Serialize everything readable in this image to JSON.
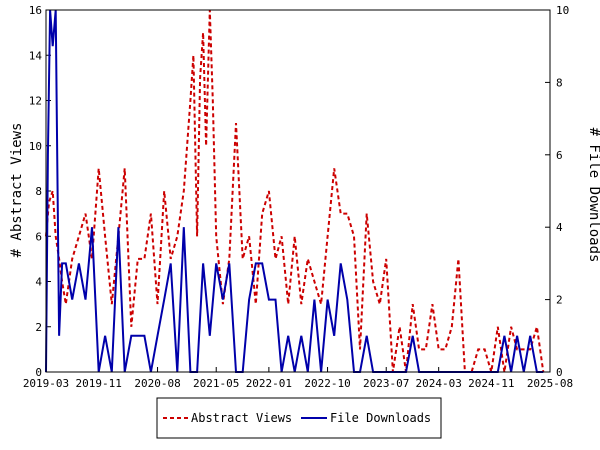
{
  "chart_data": {
    "type": "line",
    "title": "",
    "xlabel": "",
    "ylabel_left": "# Abstract Views",
    "ylabel_right": "# File Downloads",
    "x_ticks": [
      "2019-03",
      "2019-11",
      "2020-08",
      "2021-05",
      "2022-01",
      "2022-10",
      "2023-07",
      "2024-03",
      "2024-11",
      "2025-08"
    ],
    "x_range": [
      "2019-03",
      "2025-08"
    ],
    "ylim_left": [
      0,
      16
    ],
    "ylim_right": [
      0,
      10
    ],
    "yticks_left": [
      0,
      2,
      4,
      6,
      8,
      10,
      12,
      14,
      16
    ],
    "yticks_right": [
      0,
      2,
      4,
      6,
      8,
      10
    ],
    "grid": false,
    "legend_position": "bottom-center",
    "series": [
      {
        "name": "Abstract Views",
        "axis": "left",
        "color": "#cc0000",
        "style": "dashed",
        "points": [
          [
            "2019-03-01",
            6
          ],
          [
            "2019-03-15",
            7.5
          ],
          [
            "2019-04-01",
            8
          ],
          [
            "2019-04-15",
            6
          ],
          [
            "2019-05-01",
            5
          ],
          [
            "2019-05-15",
            4
          ],
          [
            "2019-06-01",
            3
          ],
          [
            "2019-07-01",
            5
          ],
          [
            "2019-08-01",
            6
          ],
          [
            "2019-09-01",
            7
          ],
          [
            "2019-10-01",
            5
          ],
          [
            "2019-11-01",
            9
          ],
          [
            "2019-12-01",
            6
          ],
          [
            "2020-01-01",
            3
          ],
          [
            "2020-02-01",
            6
          ],
          [
            "2020-03-01",
            9
          ],
          [
            "2020-04-01",
            2
          ],
          [
            "2020-05-01",
            5
          ],
          [
            "2020-06-01",
            5
          ],
          [
            "2020-07-01",
            7
          ],
          [
            "2020-08-01",
            3
          ],
          [
            "2020-09-01",
            8
          ],
          [
            "2020-10-01",
            5
          ],
          [
            "2020-11-01",
            6
          ],
          [
            "2020-12-01",
            8
          ],
          [
            "2021-01-01",
            12
          ],
          [
            "2021-01-15",
            14
          ],
          [
            "2021-02-01",
            6
          ],
          [
            "2021-02-15",
            13
          ],
          [
            "2021-03-01",
            15
          ],
          [
            "2021-03-15",
            10
          ],
          [
            "2021-04-01",
            16
          ],
          [
            "2021-04-15",
            12
          ],
          [
            "2021-05-01",
            6
          ],
          [
            "2021-06-01",
            3
          ],
          [
            "2021-07-01",
            5
          ],
          [
            "2021-08-01",
            11
          ],
          [
            "2021-09-01",
            5
          ],
          [
            "2021-10-01",
            6
          ],
          [
            "2021-11-01",
            3
          ],
          [
            "2021-12-01",
            7
          ],
          [
            "2022-01-01",
            8
          ],
          [
            "2022-02-01",
            5
          ],
          [
            "2022-03-01",
            6
          ],
          [
            "2022-04-01",
            3
          ],
          [
            "2022-05-01",
            6
          ],
          [
            "2022-06-01",
            3
          ],
          [
            "2022-07-01",
            5
          ],
          [
            "2022-08-01",
            4
          ],
          [
            "2022-09-01",
            3
          ],
          [
            "2022-10-01",
            6
          ],
          [
            "2022-11-01",
            9
          ],
          [
            "2022-12-01",
            7
          ],
          [
            "2023-01-01",
            7
          ],
          [
            "2023-02-01",
            6
          ],
          [
            "2023-03-01",
            1
          ],
          [
            "2023-04-01",
            7
          ],
          [
            "2023-05-01",
            4
          ],
          [
            "2023-06-01",
            3
          ],
          [
            "2023-07-01",
            5
          ],
          [
            "2023-08-01",
            0
          ],
          [
            "2023-09-01",
            2
          ],
          [
            "2023-10-01",
            0
          ],
          [
            "2023-11-01",
            3
          ],
          [
            "2023-12-01",
            1
          ],
          [
            "2024-01-01",
            1
          ],
          [
            "2024-02-01",
            3
          ],
          [
            "2024-03-01",
            1
          ],
          [
            "2024-04-01",
            1
          ],
          [
            "2024-05-01",
            2
          ],
          [
            "2024-06-01",
            5
          ],
          [
            "2024-07-01",
            0
          ],
          [
            "2024-08-01",
            0
          ],
          [
            "2024-09-01",
            1
          ],
          [
            "2024-10-01",
            1
          ],
          [
            "2024-11-01",
            0
          ],
          [
            "2024-12-01",
            2
          ],
          [
            "2025-01-01",
            0
          ],
          [
            "2025-02-01",
            2
          ],
          [
            "2025-03-01",
            1
          ],
          [
            "2025-04-01",
            1
          ],
          [
            "2025-05-01",
            1
          ],
          [
            "2025-06-01",
            2
          ],
          [
            "2025-07-01",
            0
          ]
        ]
      },
      {
        "name": "File Downloads",
        "axis": "right",
        "color": "#0000aa",
        "style": "solid",
        "points": [
          [
            "2019-03-01",
            0
          ],
          [
            "2019-03-10",
            6
          ],
          [
            "2019-03-20",
            10
          ],
          [
            "2019-04-01",
            9
          ],
          [
            "2019-04-15",
            10
          ],
          [
            "2019-05-01",
            1
          ],
          [
            "2019-05-15",
            3
          ],
          [
            "2019-06-01",
            3
          ],
          [
            "2019-07-01",
            2
          ],
          [
            "2019-08-01",
            3
          ],
          [
            "2019-09-01",
            2
          ],
          [
            "2019-10-01",
            4
          ],
          [
            "2019-11-01",
            0
          ],
          [
            "2019-12-01",
            1
          ],
          [
            "2020-01-01",
            0
          ],
          [
            "2020-02-01",
            4
          ],
          [
            "2020-03-01",
            0
          ],
          [
            "2020-04-01",
            1
          ],
          [
            "2020-05-01",
            1
          ],
          [
            "2020-06-01",
            1
          ],
          [
            "2020-07-01",
            0
          ],
          [
            "2020-08-01",
            1
          ],
          [
            "2020-09-01",
            2
          ],
          [
            "2020-10-01",
            3
          ],
          [
            "2020-11-01",
            0
          ],
          [
            "2020-12-01",
            4
          ],
          [
            "2021-01-01",
            0
          ],
          [
            "2021-02-01",
            0
          ],
          [
            "2021-03-01",
            3
          ],
          [
            "2021-04-01",
            1
          ],
          [
            "2021-05-01",
            3
          ],
          [
            "2021-06-01",
            2
          ],
          [
            "2021-07-01",
            3
          ],
          [
            "2021-08-01",
            0
          ],
          [
            "2021-09-01",
            0
          ],
          [
            "2021-10-01",
            2
          ],
          [
            "2021-11-01",
            3
          ],
          [
            "2021-12-01",
            3
          ],
          [
            "2022-01-01",
            2
          ],
          [
            "2022-02-01",
            2
          ],
          [
            "2022-03-01",
            0
          ],
          [
            "2022-04-01",
            1
          ],
          [
            "2022-05-01",
            0
          ],
          [
            "2022-06-01",
            1
          ],
          [
            "2022-07-01",
            0
          ],
          [
            "2022-08-01",
            2
          ],
          [
            "2022-09-01",
            0
          ],
          [
            "2022-10-01",
            2
          ],
          [
            "2022-11-01",
            1
          ],
          [
            "2022-12-01",
            3
          ],
          [
            "2023-01-01",
            2
          ],
          [
            "2023-02-01",
            0
          ],
          [
            "2023-03-01",
            0
          ],
          [
            "2023-04-01",
            1
          ],
          [
            "2023-05-01",
            0
          ],
          [
            "2023-06-01",
            0
          ],
          [
            "2023-07-01",
            0
          ],
          [
            "2023-08-01",
            0
          ],
          [
            "2023-09-01",
            0
          ],
          [
            "2023-10-01",
            0
          ],
          [
            "2023-11-01",
            1
          ],
          [
            "2023-12-01",
            0
          ],
          [
            "2024-01-01",
            0
          ],
          [
            "2024-02-01",
            0
          ],
          [
            "2024-03-01",
            0
          ],
          [
            "2024-04-01",
            0
          ],
          [
            "2024-05-01",
            0
          ],
          [
            "2024-06-01",
            0
          ],
          [
            "2024-07-01",
            0
          ],
          [
            "2024-08-01",
            0
          ],
          [
            "2024-09-01",
            0
          ],
          [
            "2024-10-01",
            0
          ],
          [
            "2024-11-01",
            0
          ],
          [
            "2024-12-01",
            0
          ],
          [
            "2025-01-01",
            1
          ],
          [
            "2025-02-01",
            0
          ],
          [
            "2025-03-01",
            1
          ],
          [
            "2025-04-01",
            0
          ],
          [
            "2025-05-01",
            1
          ],
          [
            "2025-06-01",
            0
          ],
          [
            "2025-07-01",
            0
          ]
        ]
      }
    ]
  }
}
